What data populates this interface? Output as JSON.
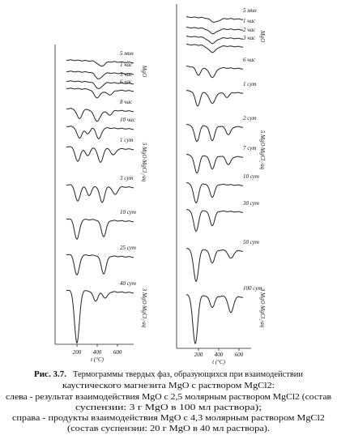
{
  "left": {
    "curves": [
      "5 мин",
      "1 час",
      "3 час",
      "6 час",
      "8 час",
      "10 час",
      "1 сут",
      "3 сут",
      "10 сут",
      "25 сут",
      "40 сут"
    ],
    "side_labels": [
      "MgO",
      "5 MgO·MgCl₂·aq",
      "3 MgO·MgCl₂·aq"
    ],
    "axis": {
      "ticks": [
        "200",
        "400",
        "600"
      ],
      "label": "t (°C)"
    }
  },
  "right": {
    "curves": [
      "5 мин",
      "1 час",
      "2 час",
      "3 час",
      "6 час",
      "1 сут",
      "2 сут",
      "7 сут",
      "10 сут",
      "30 сут",
      "50 сут",
      "100 сут"
    ],
    "side_labels": [
      "MgO",
      "5 MgO·MgCl₂·aq",
      "3 MgO·MgCl₂·aq"
    ],
    "axis": {
      "ticks": [
        "200",
        "400",
        "600"
      ],
      "label": "t (°C)"
    }
  },
  "caption": {
    "figure": "Рис. 3.7.",
    "lines": [
      "Термограммы твердых фаз, образующихся при взаимодействии",
      "каустического магнезита MgO с раствором MgCl2:",
      "слева - результат взаимодействия MgO с 2,5 молярным раствором MgCl2 (состав",
      "суспензии: 3 г MgO в 100 мл раствора);",
      "справа - продукты взаимодействия MgO с 4,3 молярным раствором MgCl2",
      "(состав суспензии: 20 г MgO в 40 мл раствора)."
    ]
  }
}
